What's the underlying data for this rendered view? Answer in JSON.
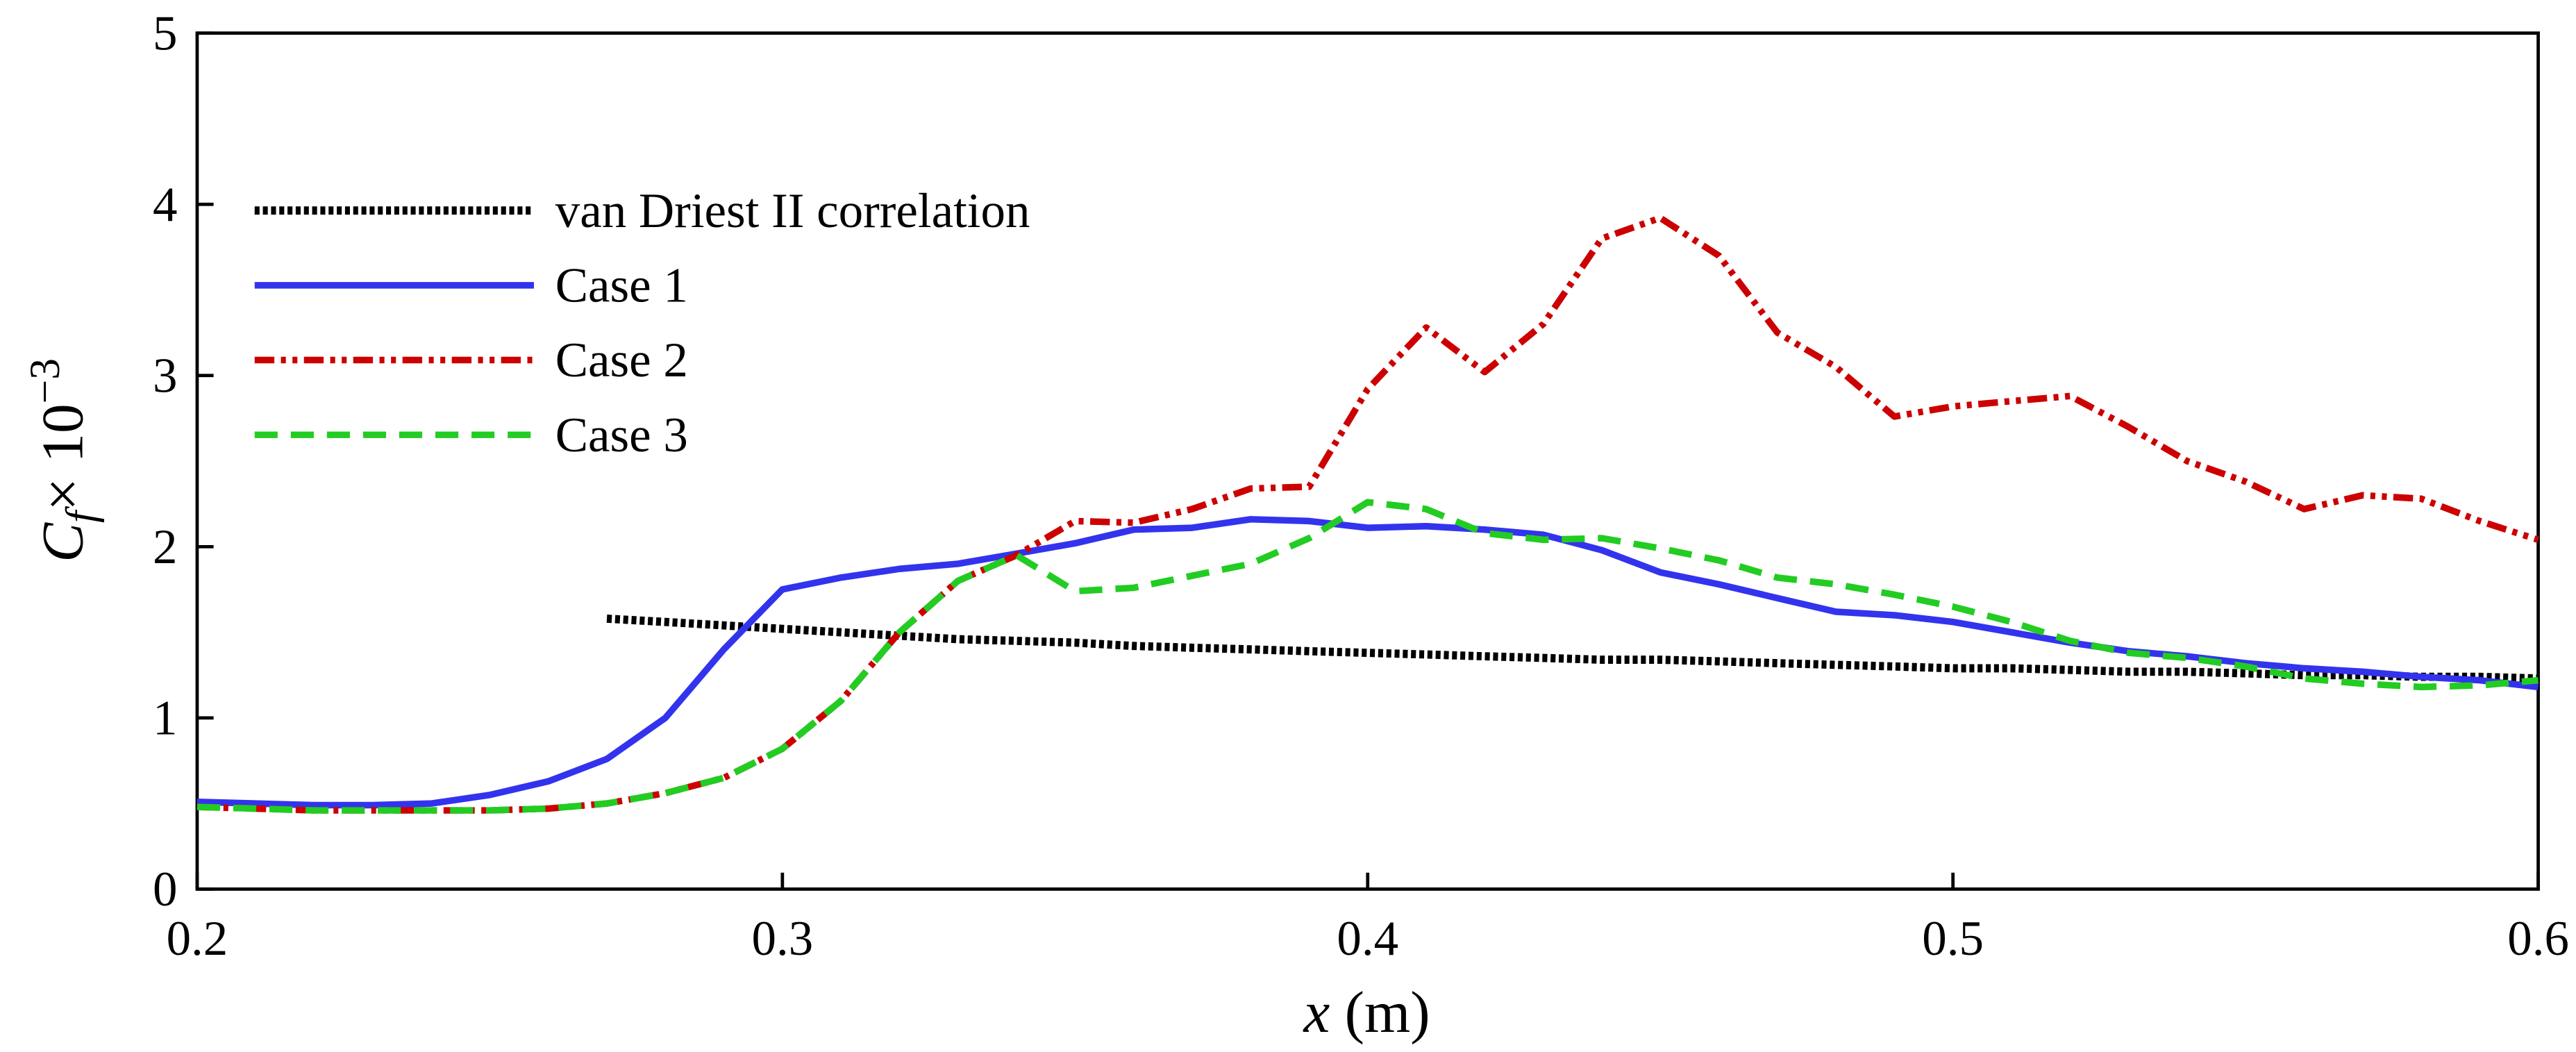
{
  "chart_data": {
    "type": "line",
    "xlabel": [
      "x",
      "(m)"
    ],
    "ylabel": [
      "C",
      "f",
      "× 10",
      "−3"
    ],
    "x": [
      0.2,
      0.21,
      0.22,
      0.23,
      0.24,
      0.25,
      0.26,
      0.27,
      0.28,
      0.29,
      0.3,
      0.31,
      0.32,
      0.33,
      0.34,
      0.35,
      0.36,
      0.37,
      0.38,
      0.39,
      0.4,
      0.41,
      0.42,
      0.43,
      0.44,
      0.45,
      0.46,
      0.47,
      0.48,
      0.49,
      0.5,
      0.51,
      0.52,
      0.53,
      0.54,
      0.55,
      0.56,
      0.57,
      0.58,
      0.59,
      0.6
    ],
    "series": [
      {
        "name": "van Driest II correlation",
        "color": "#000000",
        "linestyle": "dotted",
        "values": [
          null,
          null,
          null,
          null,
          null,
          null,
          null,
          1.58,
          1.56,
          1.54,
          1.52,
          1.5,
          1.48,
          1.46,
          1.45,
          1.44,
          1.42,
          1.41,
          1.4,
          1.39,
          1.38,
          1.37,
          1.36,
          1.35,
          1.34,
          1.34,
          1.33,
          1.32,
          1.31,
          1.3,
          1.29,
          1.29,
          1.28,
          1.27,
          1.27,
          1.26,
          1.25,
          1.25,
          1.24,
          1.24,
          1.23
        ]
      },
      {
        "name": "Case 1",
        "color": "#3333ee",
        "linestyle": "solid",
        "values": [
          0.51,
          0.5,
          0.49,
          0.49,
          0.5,
          0.55,
          0.63,
          0.76,
          1.0,
          1.4,
          1.75,
          1.82,
          1.87,
          1.9,
          1.96,
          2.02,
          2.1,
          2.11,
          2.16,
          2.15,
          2.11,
          2.12,
          2.1,
          2.07,
          1.98,
          1.85,
          1.78,
          1.7,
          1.62,
          1.6,
          1.56,
          1.5,
          1.44,
          1.39,
          1.36,
          1.32,
          1.29,
          1.27,
          1.24,
          1.22,
          1.18
        ]
      },
      {
        "name": "Case 2",
        "color": "#cc0000",
        "linestyle": "dashdotdot",
        "values": [
          0.48,
          0.47,
          0.46,
          0.46,
          0.46,
          0.46,
          0.47,
          0.5,
          0.56,
          0.65,
          0.82,
          1.1,
          1.5,
          1.8,
          1.95,
          2.15,
          2.14,
          2.22,
          2.34,
          2.35,
          2.92,
          3.28,
          3.02,
          3.3,
          3.8,
          3.92,
          3.7,
          3.25,
          3.05,
          2.76,
          2.82,
          2.85,
          2.88,
          2.7,
          2.5,
          2.38,
          2.22,
          2.3,
          2.28,
          2.15,
          2.04
        ]
      },
      {
        "name": "Case 3",
        "color": "#22cc22",
        "linestyle": "dashed",
        "values": [
          0.48,
          0.47,
          0.46,
          0.46,
          0.46,
          0.46,
          0.47,
          0.5,
          0.56,
          0.65,
          0.82,
          1.1,
          1.5,
          1.8,
          1.95,
          1.74,
          1.76,
          1.83,
          1.9,
          2.05,
          2.26,
          2.22,
          2.08,
          2.04,
          2.05,
          1.99,
          1.92,
          1.82,
          1.78,
          1.72,
          1.65,
          1.56,
          1.45,
          1.38,
          1.35,
          1.3,
          1.23,
          1.2,
          1.18,
          1.19,
          1.22
        ]
      }
    ],
    "xlim": [
      0.2,
      0.6
    ],
    "xticks": [
      0.2,
      0.3,
      0.4,
      0.5,
      0.6
    ],
    "ylim": [
      0,
      5
    ],
    "yticks": [
      0,
      1,
      2,
      3,
      4,
      5
    ],
    "grid": false,
    "legend": "upper left"
  }
}
